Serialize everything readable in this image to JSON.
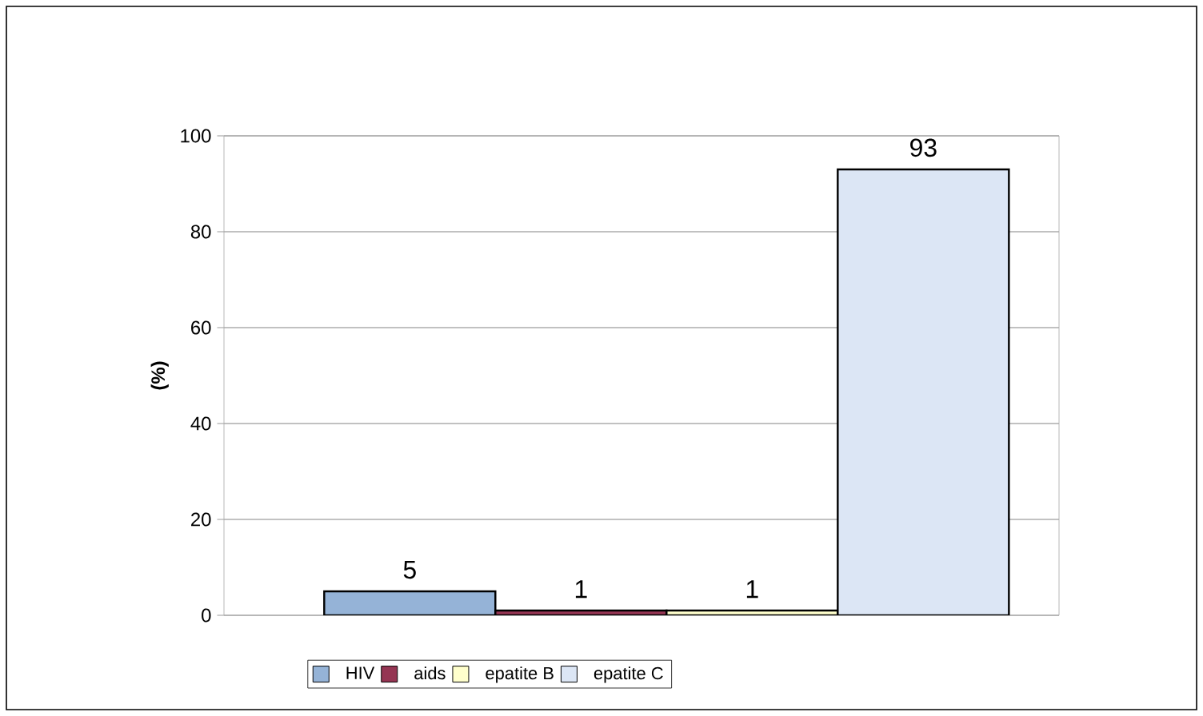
{
  "chart_data": {
    "type": "bar",
    "ylabel": "(%)",
    "categories": [
      null
    ],
    "series": [
      {
        "name": "HIV",
        "color": "#95b3d7",
        "values": [
          5
        ]
      },
      {
        "name": "aids",
        "color": "#953553",
        "values": [
          1
        ]
      },
      {
        "name": "epatite B",
        "color": "#ffffcc",
        "values": [
          1
        ]
      },
      {
        "name": "epatite C",
        "color": "#dce6f5",
        "values": [
          93
        ]
      }
    ],
    "ylim": [
      0,
      100
    ],
    "yticks": [
      0,
      20,
      40,
      60,
      80,
      100
    ],
    "grid": "y",
    "legend": "bottom",
    "data_labels": true
  }
}
